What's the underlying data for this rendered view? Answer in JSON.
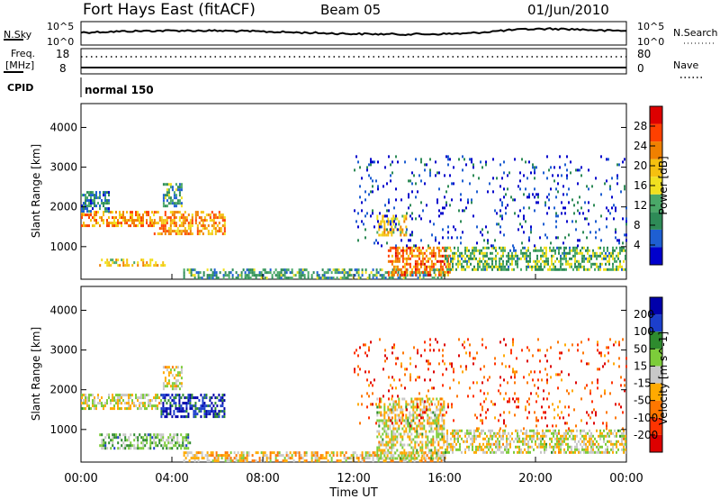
{
  "header": {
    "station": "Fort Hays East (fitACF)",
    "beam": "Beam 05",
    "date": "01/Jun/2010"
  },
  "sky_panel": {
    "left_label": "N.Sky",
    "right_label": "N.Search",
    "tick_top": "10^5",
    "tick_bottom": "10^0"
  },
  "freq_panel": {
    "left_label_line1": "Freq.",
    "left_label_line2": "[MHz]",
    "right_label": "Nave",
    "left_ticks": [
      "18",
      "8"
    ],
    "right_ticks": [
      "80",
      "0"
    ]
  },
  "cpid": {
    "label": "CPID",
    "program": "normal 150"
  },
  "colors": {
    "power": [
      "#0000cc",
      "#1e5fd2",
      "#2e8b57",
      "#4aa868",
      "#f0e020",
      "#f5c010",
      "#f08000",
      "#ff4000",
      "#dd0000"
    ],
    "velocity": [
      "#dd0000",
      "#ff3300",
      "#ff7700",
      "#ffaa00",
      "#c8c8c8",
      "#7dcc3a",
      "#2e8b2e",
      "#1c3fcc",
      "#0000aa"
    ],
    "line": "#000000"
  },
  "chart_data": [
    {
      "type": "heatmap",
      "title": "",
      "xlabel": "",
      "ylabel": "Slant Range [km]",
      "ylim": [
        180,
        4600
      ],
      "yticks": [
        "1000",
        "2000",
        "3000",
        "4000"
      ],
      "xlim": [
        0,
        24
      ],
      "colorbar": {
        "label": "Power [dB]",
        "range": [
          0,
          32
        ],
        "ticks": [
          "4",
          "8",
          "12",
          "16",
          "20",
          "24",
          "28"
        ]
      },
      "echo_regions": [
        {
          "t_start": 0.0,
          "t_end": 3.2,
          "range_km": [
            1500,
            1900
          ],
          "value_db": 22
        },
        {
          "t_start": 3.2,
          "t_end": 6.3,
          "range_km": [
            1350,
            1900
          ],
          "value_db": 22
        },
        {
          "t_start": 3.6,
          "t_end": 4.4,
          "range_km": [
            2000,
            2600
          ],
          "value_db": 10
        },
        {
          "t_start": 0.8,
          "t_end": 3.7,
          "range_km": [
            500,
            700
          ],
          "value_db": 18
        },
        {
          "t_start": 0.0,
          "t_end": 1.2,
          "range_km": [
            1900,
            2400
          ],
          "value_db": 8
        },
        {
          "t_start": 4.5,
          "t_end": 16.0,
          "range_km": [
            220,
            450
          ],
          "value_db": 10
        },
        {
          "t_start": 13.0,
          "t_end": 14.3,
          "range_km": [
            1300,
            1800
          ],
          "value_db": 18
        },
        {
          "t_start": 13.5,
          "t_end": 16.2,
          "range_km": [
            280,
            1000
          ],
          "value_db": 24
        },
        {
          "t_start": 16.0,
          "t_end": 24.0,
          "range_km": [
            400,
            1000
          ],
          "value_db": 12
        },
        {
          "t_start": 12.0,
          "t_end": 24.0,
          "range_km": [
            1000,
            3300
          ],
          "value_db": 4
        }
      ]
    },
    {
      "type": "heatmap",
      "title": "",
      "xlabel": "Time UT",
      "ylabel": "Slant Range [km]",
      "ylim": [
        180,
        4600
      ],
      "yticks": [
        "1000",
        "2000",
        "3000",
        "4000"
      ],
      "xlim": [
        0,
        24
      ],
      "xticks": [
        "00:00",
        "04:00",
        "08:00",
        "12:00",
        "16:00",
        "20:00",
        "00:00"
      ],
      "colorbar": {
        "label": "Velocity [m s^-1]",
        "range": [
          -250,
          250
        ],
        "ticks": [
          "200",
          "100",
          "50",
          "15",
          "-15",
          "-50",
          "-100",
          "-200"
        ]
      },
      "echo_regions": [
        {
          "t_start": 0.0,
          "t_end": 3.5,
          "range_km": [
            1500,
            1900
          ],
          "value_ms": 0
        },
        {
          "t_start": 3.5,
          "t_end": 6.3,
          "range_km": [
            1350,
            1900
          ],
          "value_ms": 180
        },
        {
          "t_start": 3.6,
          "t_end": 4.4,
          "range_km": [
            2000,
            2600
          ],
          "value_ms": 0
        },
        {
          "t_start": 0.8,
          "t_end": 4.8,
          "range_km": [
            500,
            900
          ],
          "value_ms": 60
        },
        {
          "t_start": 4.5,
          "t_end": 16.0,
          "range_km": [
            220,
            450
          ],
          "value_ms": -40
        },
        {
          "t_start": 13.0,
          "t_end": 16.0,
          "range_km": [
            300,
            1800
          ],
          "value_ms": 0
        },
        {
          "t_start": 16.0,
          "t_end": 24.0,
          "range_km": [
            400,
            1000
          ],
          "value_ms": 0
        },
        {
          "t_start": 12.0,
          "t_end": 24.0,
          "range_km": [
            1000,
            3300
          ],
          "value_ms": -150
        }
      ]
    }
  ]
}
